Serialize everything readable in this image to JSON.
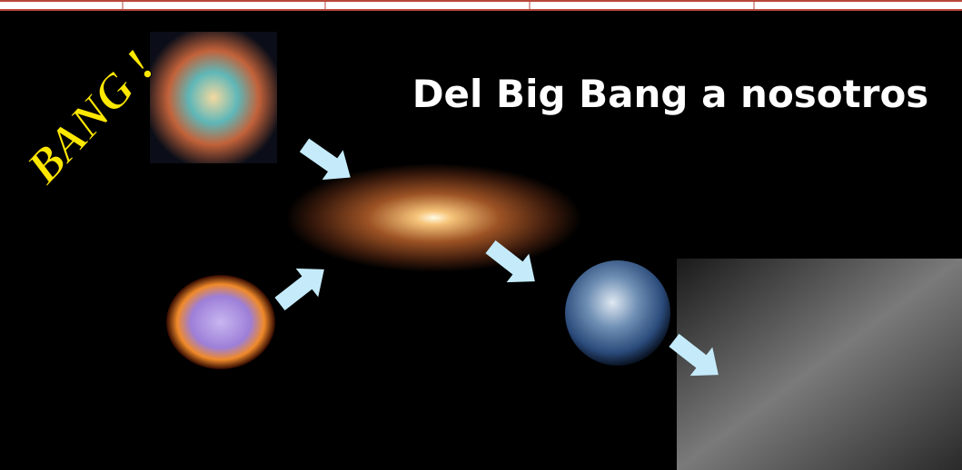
{
  "slide": {
    "exclamation": "BANG !",
    "title": "Del Big Bang a nosotros"
  }
}
